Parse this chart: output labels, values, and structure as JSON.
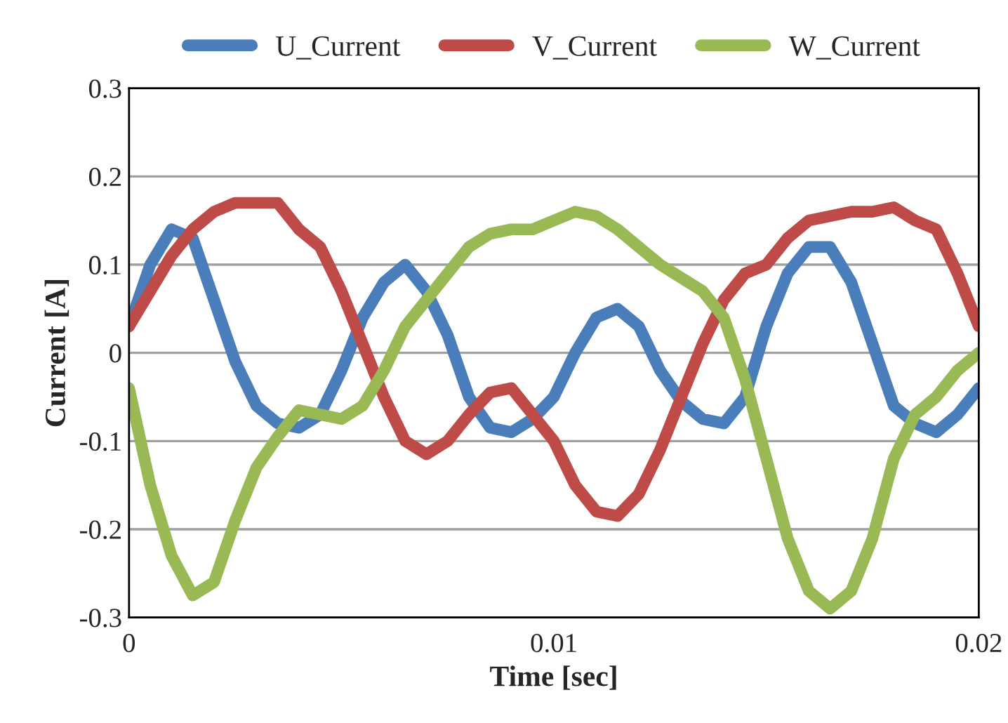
{
  "chart_data": {
    "type": "line",
    "xlabel": "Time [sec]",
    "ylabel": "Current [A]",
    "x": [
      0,
      0.0005,
      0.001,
      0.0015,
      0.002,
      0.0025,
      0.003,
      0.0035,
      0.004,
      0.0045,
      0.005,
      0.0055,
      0.006,
      0.0065,
      0.007,
      0.0075,
      0.008,
      0.0085,
      0.009,
      0.0095,
      0.01,
      0.0105,
      0.011,
      0.0115,
      0.012,
      0.0125,
      0.013,
      0.0135,
      0.014,
      0.0145,
      0.015,
      0.0155,
      0.016,
      0.0165,
      0.017,
      0.0175,
      0.018,
      0.0185,
      0.019,
      0.0195,
      0.02
    ],
    "series": [
      {
        "name": "U_Current",
        "color": "#4a7ebb",
        "values": [
          0.03,
          0.1,
          0.14,
          0.13,
          0.06,
          -0.01,
          -0.06,
          -0.08,
          -0.085,
          -0.07,
          -0.02,
          0.04,
          0.08,
          0.1,
          0.07,
          0.02,
          -0.05,
          -0.085,
          -0.09,
          -0.075,
          -0.05,
          0.0,
          0.04,
          0.05,
          0.03,
          -0.02,
          -0.055,
          -0.075,
          -0.08,
          -0.05,
          0.03,
          0.09,
          0.12,
          0.12,
          0.08,
          0.01,
          -0.06,
          -0.08,
          -0.09,
          -0.07,
          -0.04
        ]
      },
      {
        "name": "V_Current",
        "color": "#be4b48",
        "values": [
          0.03,
          0.07,
          0.11,
          0.14,
          0.16,
          0.17,
          0.17,
          0.17,
          0.14,
          0.12,
          0.07,
          0.01,
          -0.05,
          -0.1,
          -0.115,
          -0.1,
          -0.07,
          -0.045,
          -0.04,
          -0.07,
          -0.1,
          -0.15,
          -0.18,
          -0.185,
          -0.16,
          -0.11,
          -0.05,
          0.01,
          0.06,
          0.09,
          0.1,
          0.13,
          0.15,
          0.155,
          0.16,
          0.16,
          0.165,
          0.15,
          0.14,
          0.09,
          0.03
        ]
      },
      {
        "name": "W_Current",
        "color": "#98b954",
        "values": [
          -0.04,
          -0.15,
          -0.23,
          -0.275,
          -0.26,
          -0.19,
          -0.13,
          -0.095,
          -0.065,
          -0.07,
          -0.075,
          -0.06,
          -0.02,
          0.03,
          0.06,
          0.09,
          0.12,
          0.135,
          0.14,
          0.14,
          0.15,
          0.16,
          0.155,
          0.14,
          0.12,
          0.1,
          0.085,
          0.07,
          0.04,
          -0.03,
          -0.12,
          -0.21,
          -0.27,
          -0.29,
          -0.27,
          -0.21,
          -0.12,
          -0.07,
          -0.05,
          -0.02,
          0.0
        ]
      }
    ],
    "xlim": [
      0,
      0.02
    ],
    "xticks": [
      0,
      0.01,
      0.02
    ],
    "ylim": [
      -0.3,
      0.3
    ],
    "yticks": [
      -0.3,
      -0.2,
      -0.1,
      0,
      0.1,
      0.2,
      0.3
    ],
    "grid": "y",
    "legend": "top",
    "marker": "none",
    "line_style": "solid"
  }
}
